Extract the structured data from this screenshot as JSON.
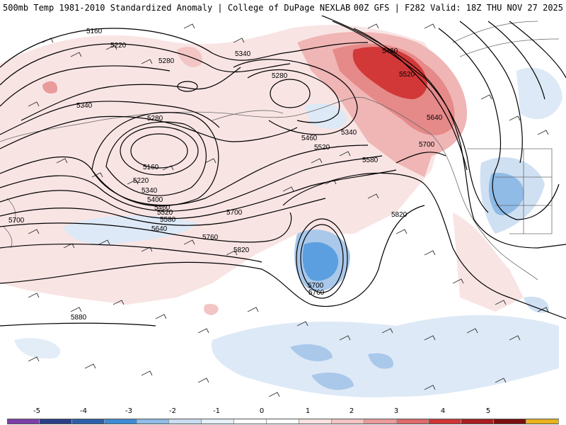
{
  "header": {
    "title": "500mb Temp 1981-2010 Standardized Anomaly | College of DuPage NEXLAB",
    "run": "00Z GFS | F282 Valid: 18Z THU NOV 27 2025"
  },
  "height_labels": [
    {
      "id": "h5160a",
      "text": "5160"
    },
    {
      "id": "h5220a",
      "text": "5220"
    },
    {
      "id": "h5280a",
      "text": "5280"
    },
    {
      "id": "h5340a",
      "text": "5340"
    },
    {
      "id": "h5280b",
      "text": "5280"
    },
    {
      "id": "h5340b",
      "text": "5340"
    },
    {
      "id": "h5280c",
      "text": "5280"
    },
    {
      "id": "h5160b",
      "text": "5160"
    },
    {
      "id": "h5220b",
      "text": "5220"
    },
    {
      "id": "h5340c",
      "text": "5340"
    },
    {
      "id": "h5400",
      "text": "5400"
    },
    {
      "id": "h5460a",
      "text": "5460"
    },
    {
      "id": "h5520a",
      "text": "5520"
    },
    {
      "id": "h5580a",
      "text": "5580"
    },
    {
      "id": "h5640a",
      "text": "5640"
    },
    {
      "id": "h5700a",
      "text": "5700"
    },
    {
      "id": "h5760a",
      "text": "5760"
    },
    {
      "id": "h5820a",
      "text": "5820"
    },
    {
      "id": "h5880",
      "text": "5880"
    },
    {
      "id": "h5460b",
      "text": "5460"
    },
    {
      "id": "h5520b",
      "text": "5520"
    },
    {
      "id": "h5580b",
      "text": "5580"
    },
    {
      "id": "h5460c",
      "text": "5460"
    },
    {
      "id": "h5520c",
      "text": "5520"
    },
    {
      "id": "h5640b",
      "text": "5640"
    },
    {
      "id": "h5700b",
      "text": "5700"
    },
    {
      "id": "h5820b",
      "text": "5820"
    },
    {
      "id": "h5700c",
      "text": "5700"
    },
    {
      "id": "h5760b",
      "text": "5760"
    },
    {
      "id": "h5340d",
      "text": "5340"
    },
    {
      "id": "h5700d",
      "text": "5700"
    }
  ],
  "colorbar": {
    "labels": [
      "-5",
      "-4",
      "-3",
      "-2",
      "-1",
      "0",
      "1",
      "2",
      "3",
      "4",
      "5"
    ],
    "colors": [
      "#7b3fa8",
      "#2a3f86",
      "#2b5fa8",
      "#3f8bd6",
      "#8fbbe6",
      "#c9dcf0",
      "#e6eef8",
      "#ffffff",
      "#ffffff",
      "#f8e1e1",
      "#f2c3c3",
      "#e99a9a",
      "#de6a6a",
      "#cf3535",
      "#a81e1e",
      "#7a0f0f",
      "#e8b21e"
    ]
  },
  "colors": {
    "warm_light": "#f6dada",
    "warm_mid": "#ec9d9d",
    "warm_strong": "#d63c3c",
    "cool_light": "#d9e6f4",
    "cool_mid": "#a9c8ea",
    "cool_strong": "#5a9ee0"
  }
}
